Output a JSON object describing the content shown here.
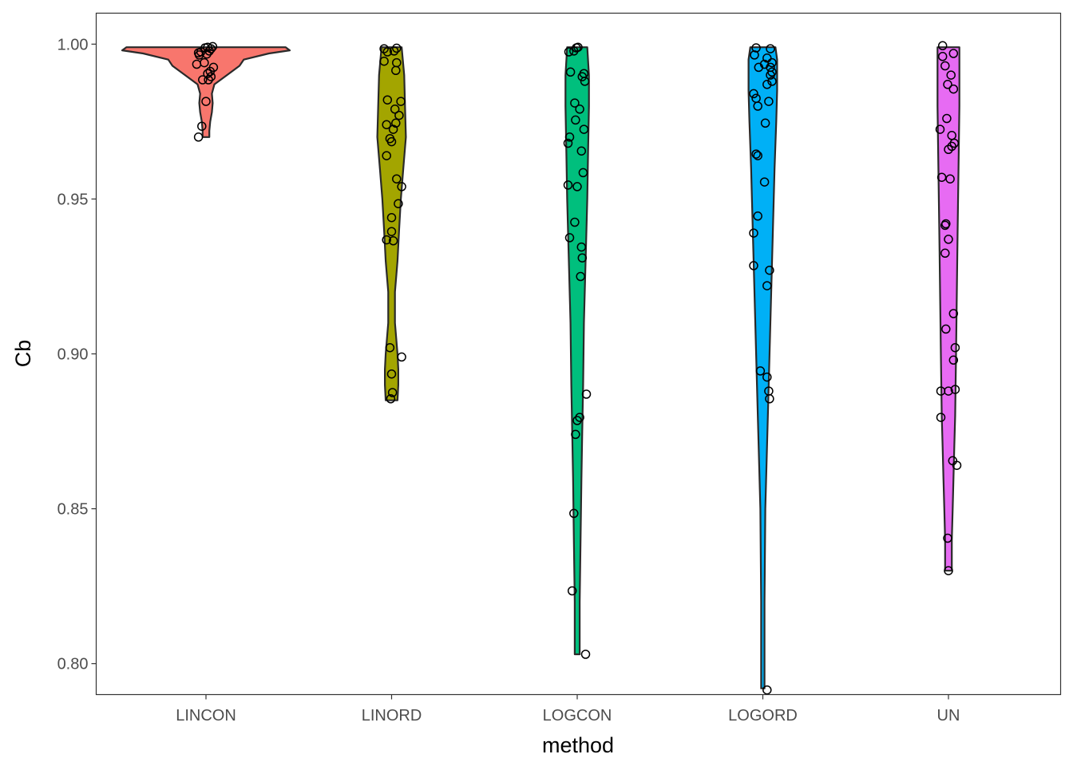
{
  "chart_data": {
    "type": "violin",
    "xlabel": "method",
    "ylabel": "Cb",
    "ylim": [
      0.79,
      1.01
    ],
    "y_ticks": [
      {
        "value": 0.8,
        "label": "0.80"
      },
      {
        "value": 0.85,
        "label": "0.85"
      },
      {
        "value": 0.9,
        "label": "0.90"
      },
      {
        "value": 0.95,
        "label": "0.95"
      },
      {
        "value": 1.0,
        "label": "1.00"
      }
    ],
    "grid": false,
    "legend": "none",
    "categories": [
      "LINCON",
      "LINORD",
      "LOGCON",
      "LOGORD",
      "UN"
    ],
    "series": [
      {
        "category": "LINCON",
        "color": "#F8766D",
        "density": [
          [
            0.97,
            0.04
          ],
          [
            0.972,
            0.04
          ],
          [
            0.975,
            0.05
          ],
          [
            0.978,
            0.07
          ],
          [
            0.981,
            0.08
          ],
          [
            0.984,
            0.07
          ],
          [
            0.987,
            0.1
          ],
          [
            0.99,
            0.25
          ],
          [
            0.993,
            0.4
          ],
          [
            0.995,
            0.45
          ],
          [
            0.997,
            0.75
          ],
          [
            0.998,
            1.0
          ],
          [
            0.999,
            0.95
          ]
        ],
        "points": [
          [
            -0.09,
            0.97
          ],
          [
            -0.05,
            0.9735
          ],
          [
            0.0,
            0.9815
          ],
          [
            -0.04,
            0.9885
          ],
          [
            0.03,
            0.9885
          ],
          [
            0.06,
            0.9895
          ],
          [
            0.02,
            0.9905
          ],
          [
            0.05,
            0.9912
          ],
          [
            0.09,
            0.9925
          ],
          [
            -0.11,
            0.9935
          ],
          [
            -0.02,
            0.994
          ],
          [
            -0.08,
            0.9965
          ],
          [
            0.01,
            0.9968
          ],
          [
            -0.09,
            0.9972
          ],
          [
            -0.06,
            0.9975
          ],
          [
            0.04,
            0.9978
          ],
          [
            0.06,
            0.9985
          ],
          [
            -0.01,
            0.9988
          ],
          [
            0.02,
            0.999
          ],
          [
            0.08,
            0.9992
          ]
        ]
      },
      {
        "category": "LINORD",
        "color": "#A3A500",
        "density": [
          [
            0.885,
            0.07
          ],
          [
            0.89,
            0.08
          ],
          [
            0.895,
            0.08
          ],
          [
            0.9,
            0.07
          ],
          [
            0.91,
            0.04
          ],
          [
            0.92,
            0.04
          ],
          [
            0.93,
            0.07
          ],
          [
            0.94,
            0.09
          ],
          [
            0.95,
            0.11
          ],
          [
            0.96,
            0.14
          ],
          [
            0.97,
            0.17
          ],
          [
            0.98,
            0.16
          ],
          [
            0.99,
            0.15
          ],
          [
            0.999,
            0.12
          ]
        ],
        "points": [
          [
            -0.01,
            0.8855
          ],
          [
            0.01,
            0.8875
          ],
          [
            0.0,
            0.8935
          ],
          [
            0.12,
            0.899
          ],
          [
            -0.02,
            0.902
          ],
          [
            0.02,
            0.9365
          ],
          [
            -0.06,
            0.9368
          ],
          [
            0.0,
            0.9395
          ],
          [
            0.0,
            0.944
          ],
          [
            0.08,
            0.9485
          ],
          [
            0.12,
            0.954
          ],
          [
            0.06,
            0.9565
          ],
          [
            -0.06,
            0.964
          ],
          [
            0.0,
            0.9685
          ],
          [
            -0.02,
            0.9695
          ],
          [
            0.02,
            0.9725
          ],
          [
            -0.06,
            0.974
          ],
          [
            0.05,
            0.9745
          ],
          [
            0.09,
            0.977
          ],
          [
            0.04,
            0.979
          ],
          [
            0.11,
            0.9815
          ],
          [
            -0.05,
            0.982
          ],
          [
            0.05,
            0.9915
          ],
          [
            0.06,
            0.994
          ],
          [
            -0.09,
            0.9945
          ],
          [
            -0.05,
            0.9975
          ],
          [
            0.03,
            0.9978
          ],
          [
            -0.09,
            0.9985
          ],
          [
            0.06,
            0.9987
          ]
        ]
      },
      {
        "category": "LOGCON",
        "color": "#00BF7D",
        "density": [
          [
            0.803,
            0.03
          ],
          [
            0.82,
            0.03
          ],
          [
            0.84,
            0.04
          ],
          [
            0.86,
            0.05
          ],
          [
            0.875,
            0.06
          ],
          [
            0.89,
            0.07
          ],
          [
            0.91,
            0.08
          ],
          [
            0.93,
            0.1
          ],
          [
            0.95,
            0.12
          ],
          [
            0.965,
            0.13
          ],
          [
            0.98,
            0.14
          ],
          [
            0.99,
            0.14
          ],
          [
            0.999,
            0.12
          ]
        ],
        "points": [
          [
            0.1,
            0.803
          ],
          [
            -0.06,
            0.8235
          ],
          [
            -0.04,
            0.8485
          ],
          [
            -0.02,
            0.874
          ],
          [
            0.0,
            0.8785
          ],
          [
            0.03,
            0.8795
          ],
          [
            0.11,
            0.887
          ],
          [
            0.04,
            0.925
          ],
          [
            0.06,
            0.931
          ],
          [
            0.05,
            0.9345
          ],
          [
            -0.09,
            0.9375
          ],
          [
            -0.03,
            0.9425
          ],
          [
            -0.11,
            0.9545
          ],
          [
            0.0,
            0.954
          ],
          [
            0.07,
            0.9585
          ],
          [
            0.05,
            0.9655
          ],
          [
            -0.11,
            0.968
          ],
          [
            -0.09,
            0.97
          ],
          [
            0.08,
            0.9725
          ],
          [
            -0.02,
            0.9755
          ],
          [
            0.03,
            0.979
          ],
          [
            -0.03,
            0.981
          ],
          [
            0.09,
            0.988
          ],
          [
            0.06,
            0.9895
          ],
          [
            0.08,
            0.9905
          ],
          [
            -0.08,
            0.991
          ],
          [
            -0.1,
            0.9975
          ],
          [
            -0.04,
            0.9978
          ],
          [
            -0.01,
            0.9988
          ],
          [
            0.01,
            0.999
          ]
        ]
      },
      {
        "category": "LOGORD",
        "color": "#00B0F6",
        "density": [
          [
            0.792,
            0.02
          ],
          [
            0.82,
            0.02
          ],
          [
            0.85,
            0.03
          ],
          [
            0.88,
            0.06
          ],
          [
            0.9,
            0.08
          ],
          [
            0.92,
            0.1
          ],
          [
            0.94,
            0.12
          ],
          [
            0.96,
            0.14
          ],
          [
            0.975,
            0.16
          ],
          [
            0.985,
            0.17
          ],
          [
            0.995,
            0.17
          ],
          [
            0.999,
            0.15
          ]
        ],
        "points": [
          [
            0.05,
            0.7915
          ],
          [
            0.08,
            0.8855
          ],
          [
            0.07,
            0.888
          ],
          [
            0.05,
            0.8925
          ],
          [
            -0.03,
            0.8945
          ],
          [
            0.05,
            0.922
          ],
          [
            0.08,
            0.927
          ],
          [
            -0.11,
            0.9285
          ],
          [
            -0.11,
            0.939
          ],
          [
            -0.06,
            0.9445
          ],
          [
            0.02,
            0.9555
          ],
          [
            -0.06,
            0.964
          ],
          [
            -0.08,
            0.9645
          ],
          [
            0.03,
            0.9745
          ],
          [
            -0.06,
            0.98
          ],
          [
            0.07,
            0.9815
          ],
          [
            -0.08,
            0.9825
          ],
          [
            -0.11,
            0.984
          ],
          [
            0.05,
            0.987
          ],
          [
            0.11,
            0.988
          ],
          [
            0.09,
            0.99
          ],
          [
            0.11,
            0.991
          ],
          [
            0.09,
            0.9925
          ],
          [
            -0.05,
            0.9925
          ],
          [
            0.02,
            0.9935
          ],
          [
            0.11,
            0.994
          ],
          [
            0.05,
            0.9955
          ],
          [
            -0.1,
            0.9965
          ],
          [
            0.09,
            0.9985
          ],
          [
            -0.08,
            0.9988
          ]
        ]
      },
      {
        "category": "UN",
        "color": "#E76BF3",
        "density": [
          [
            0.83,
            0.04
          ],
          [
            0.84,
            0.04
          ],
          [
            0.85,
            0.05
          ],
          [
            0.86,
            0.06
          ],
          [
            0.87,
            0.07
          ],
          [
            0.88,
            0.08
          ],
          [
            0.9,
            0.09
          ],
          [
            0.92,
            0.1
          ],
          [
            0.94,
            0.11
          ],
          [
            0.96,
            0.12
          ],
          [
            0.98,
            0.13
          ],
          [
            0.999,
            0.13
          ]
        ],
        "points": [
          [
            0.0,
            0.83
          ],
          [
            -0.01,
            0.8405
          ],
          [
            0.1,
            0.864
          ],
          [
            0.05,
            0.8655
          ],
          [
            -0.09,
            0.8795
          ],
          [
            -0.09,
            0.888
          ],
          [
            0.0,
            0.888
          ],
          [
            0.08,
            0.8885
          ],
          [
            0.06,
            0.898
          ],
          [
            0.08,
            0.902
          ],
          [
            -0.03,
            0.908
          ],
          [
            0.06,
            0.913
          ],
          [
            -0.04,
            0.9325
          ],
          [
            0.0,
            0.937
          ],
          [
            -0.04,
            0.9415
          ],
          [
            -0.03,
            0.942
          ],
          [
            0.02,
            0.9565
          ],
          [
            -0.08,
            0.957
          ],
          [
            0.04,
            0.967
          ],
          [
            0.0,
            0.966
          ],
          [
            0.07,
            0.968
          ],
          [
            0.04,
            0.9705
          ],
          [
            -0.1,
            0.9725
          ],
          [
            -0.02,
            0.976
          ],
          [
            0.06,
            0.9855
          ],
          [
            -0.01,
            0.987
          ],
          [
            0.03,
            0.99
          ],
          [
            -0.04,
            0.993
          ],
          [
            -0.07,
            0.996
          ],
          [
            0.06,
            0.997
          ],
          [
            -0.07,
            0.9995
          ]
        ]
      }
    ]
  }
}
